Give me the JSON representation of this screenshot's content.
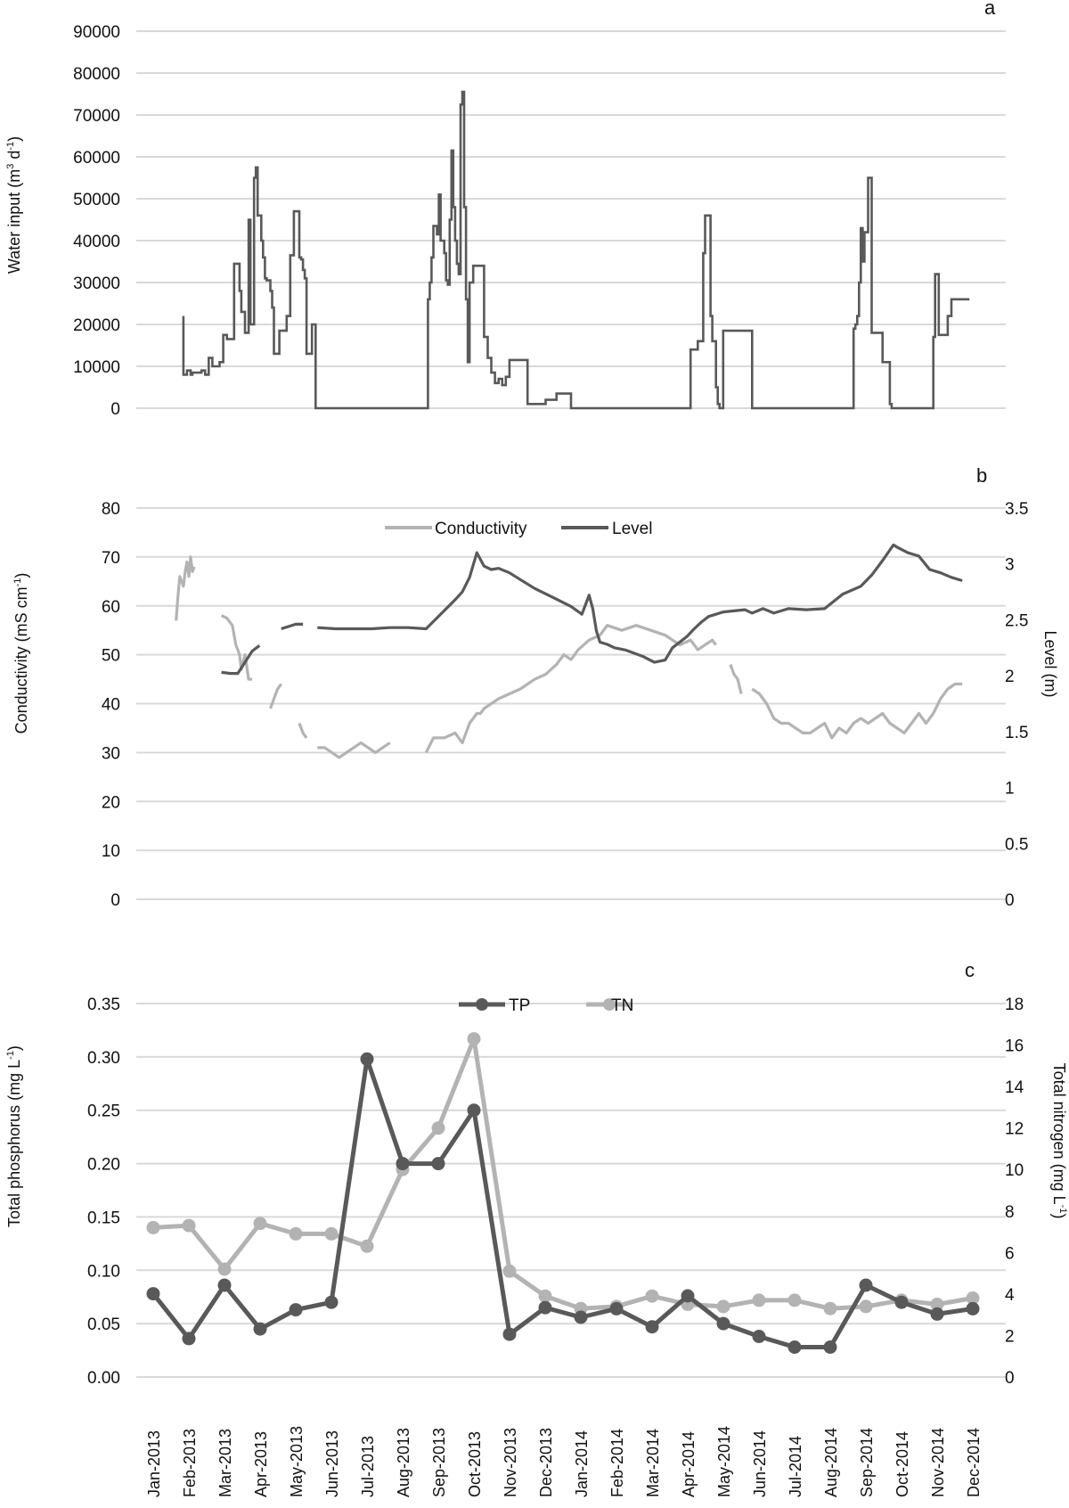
{
  "colors": {
    "dark": "#595959",
    "light": "#b3b3b3",
    "grid": "#d9d9d9",
    "text": "#111111"
  },
  "chart_data": [
    {
      "panel_label": "a",
      "type": "line",
      "ylabel": "Water input (m³ d⁻¹)",
      "ylabel_main": "Water input (m",
      "ylabel_sup1": "3",
      "ylabel_mid": " d",
      "ylabel_sup2": "-1",
      "ylabel_end": ")",
      "ylim": [
        0,
        90000
      ],
      "y_ticks": [
        "90000",
        "80000",
        "70000",
        "60000",
        "50000",
        "40000",
        "30000",
        "20000",
        "10000",
        "0"
      ],
      "grid": true,
      "xlim": [
        0,
        24
      ],
      "series": [
        {
          "color": "dark",
          "style": "step",
          "x": [
            1.3,
            1.3,
            1.4,
            1.5,
            1.55,
            1.7,
            1.8,
            1.9,
            2.0,
            2.1,
            2.2,
            2.3,
            2.4,
            2.5,
            2.6,
            2.7,
            2.85,
            2.9,
            3.0,
            3.1,
            3.15,
            3.25,
            3.3,
            3.35,
            3.4,
            3.45,
            3.5,
            3.55,
            3.6,
            3.65,
            3.7,
            3.75,
            3.8,
            3.85,
            3.9,
            3.95,
            4.05,
            4.15,
            4.25,
            4.35,
            4.5,
            4.55,
            4.6,
            4.65,
            4.7,
            4.75,
            4.8,
            4.85,
            4.95,
            5.0,
            5.05,
            5.8,
            7.0,
            8.0,
            8.05,
            8.1,
            8.15,
            8.2,
            8.3,
            8.35,
            8.4,
            8.5,
            8.55,
            8.6,
            8.65,
            8.7,
            8.75,
            8.8,
            8.85,
            8.9,
            8.95,
            9.0,
            9.05,
            9.1,
            9.15,
            9.2,
            9.3,
            9.35,
            9.4,
            9.45,
            9.5,
            9.55,
            9.6,
            9.7,
            9.8,
            9.9,
            10.0,
            10.1,
            10.2,
            10.3,
            10.4,
            10.5,
            10.6,
            10.8,
            11.0,
            11.3,
            11.6,
            11.8,
            12.0,
            12.4,
            12.8,
            13.0,
            14.0,
            15.0,
            15.3,
            15.5,
            15.65,
            15.7,
            15.75,
            15.85,
            15.9,
            16.0,
            16.05,
            16.1,
            16.2,
            17.0,
            18.0,
            19.0,
            19.8,
            19.85,
            19.9,
            19.95,
            20.0,
            20.05,
            20.1,
            20.2,
            20.3,
            20.4,
            20.5,
            20.6,
            20.8,
            20.85,
            20.9,
            21.0,
            21.5,
            22.0,
            22.05,
            22.1,
            22.15,
            22.2,
            22.4,
            22.5,
            22.55,
            22.6,
            23.0
          ],
          "y": [
            22000,
            8000,
            9000,
            8000,
            8500,
            8500,
            9000,
            8000,
            12000,
            10000,
            10000,
            11000,
            17500,
            16500,
            16500,
            34500,
            28000,
            23000,
            18000,
            45000,
            20000,
            55000,
            57500,
            46000,
            46000,
            40000,
            36000,
            31000,
            30500,
            30500,
            28000,
            24000,
            13000,
            13000,
            13000,
            18500,
            18500,
            22000,
            36500,
            47000,
            36000,
            35500,
            33000,
            31000,
            13000,
            13000,
            13000,
            20000,
            0,
            0,
            0,
            0,
            0,
            0,
            26000,
            30000,
            36000,
            43500,
            41500,
            51000,
            40000,
            37000,
            30500,
            29500,
            45000,
            61500,
            48000,
            40000,
            34500,
            32000,
            72500,
            75500,
            48000,
            26000,
            11000,
            30000,
            34000,
            34000,
            34000,
            34000,
            34000,
            34000,
            17000,
            12000,
            8500,
            6000,
            7000,
            5500,
            7500,
            11500,
            11500,
            11500,
            11500,
            1000,
            1000,
            2000,
            3500,
            3500,
            0,
            0,
            0,
            0,
            0,
            0,
            14000,
            16000,
            37000,
            46000,
            46000,
            22000,
            16000,
            5000,
            1000,
            0,
            18500,
            0,
            0,
            0,
            19000,
            20000,
            22000,
            30000,
            43000,
            35000,
            42000,
            55000,
            18000,
            18000,
            18000,
            11000,
            1000,
            0,
            0,
            0,
            0,
            17000,
            32000,
            32000,
            17500,
            17500,
            22000,
            26000,
            26000,
            26000,
            26000
          ]
        }
      ]
    },
    {
      "panel_label": "b",
      "type": "line",
      "ylabel": "Conductivity (mS cm⁻¹)",
      "ylabel_main": "Conductivity (mS cm",
      "ylabel_sup": "-1",
      "ylabel_end": ")",
      "ylim": [
        0,
        80
      ],
      "y_ticks": [
        "80",
        "70",
        "60",
        "50",
        "40",
        "30",
        "20",
        "10",
        "0"
      ],
      "y2label": "Level (m)",
      "y2lim": [
        0,
        3.5
      ],
      "y2_ticks": [
        "3.5",
        "3",
        "2.5",
        "2",
        "1.5",
        "1",
        "0.5",
        "0"
      ],
      "grid": true,
      "xlim": [
        0,
        24
      ],
      "legend": [
        "Conductivity",
        "Level"
      ],
      "legend_position": "top-center",
      "series": [
        {
          "name": "Conductivity",
          "axis": "left",
          "color": "light",
          "segments": [
            {
              "x": [
                1.1,
                1.15,
                1.2,
                1.3,
                1.35,
                1.4,
                1.45,
                1.5,
                1.55,
                1.6
              ],
              "y": [
                57,
                62,
                66,
                64,
                67,
                69,
                66,
                70,
                67,
                68
              ]
            },
            {
              "x": [
                2.35,
                2.5,
                2.65,
                2.75,
                2.85,
                2.9,
                3.0,
                3.1,
                3.2
              ],
              "y": [
                58,
                57.5,
                56,
                52,
                50,
                47,
                50,
                45,
                45
              ]
            },
            {
              "x": [
                3.7,
                3.8,
                3.9,
                4.0
              ],
              "y": [
                39,
                41,
                43,
                44
              ]
            },
            {
              "x": [
                4.5,
                4.6,
                4.7
              ],
              "y": [
                36,
                34,
                33
              ]
            },
            {
              "x": [
                5.0,
                5.2,
                5.4,
                5.6,
                5.8,
                6.0,
                6.2,
                6.4,
                6.6,
                6.8,
                7.0
              ],
              "y": [
                31,
                31,
                30,
                29,
                30,
                31,
                32,
                31,
                30,
                31,
                32
              ]
            },
            {
              "x": [
                8.0,
                8.2,
                8.5,
                8.8,
                9.0,
                9.2,
                9.4,
                9.5,
                9.6,
                9.8,
                10.0,
                10.3,
                10.6,
                11.0,
                11.3,
                11.6,
                11.8,
                12.0,
                12.2,
                12.5,
                12.8,
                13.0,
                13.4,
                13.8,
                14.2,
                14.6,
                15.0,
                15.3,
                15.5,
                15.7,
                15.9,
                16.0
              ],
              "y": [
                30,
                33,
                33,
                34,
                32,
                36,
                38,
                38,
                39,
                40,
                41,
                42,
                43,
                45,
                46,
                48,
                50,
                49,
                51,
                53,
                54,
                56,
                55,
                56,
                55,
                54,
                52,
                53,
                51,
                52,
                53,
                52
              ]
            },
            {
              "x": [
                16.4,
                16.5,
                16.6,
                16.7
              ],
              "y": [
                48,
                46,
                45,
                42
              ]
            },
            {
              "x": [
                17.0,
                17.2,
                17.4,
                17.6,
                17.8,
                18.0,
                18.2,
                18.4,
                18.6,
                18.8,
                19.0,
                19.2,
                19.4,
                19.6,
                19.8,
                20.0,
                20.2,
                20.4,
                20.6,
                20.8,
                21.0,
                21.2,
                21.4,
                21.6,
                21.8,
                22.0,
                22.2,
                22.4,
                22.6,
                22.8
              ],
              "y": [
                43,
                42,
                40,
                37,
                36,
                36,
                35,
                34,
                34,
                35,
                36,
                33,
                35,
                34,
                36,
                37,
                36,
                37,
                38,
                36,
                35,
                34,
                36,
                38,
                36,
                38,
                41,
                43,
                44,
                44
              ]
            }
          ]
        },
        {
          "name": "Level",
          "axis": "right",
          "color": "dark",
          "segments": [
            {
              "x": [
                2.35,
                2.6,
                2.8,
                3.0,
                3.2,
                3.4
              ],
              "y": [
                2.03,
                2.02,
                2.02,
                2.12,
                2.22,
                2.27
              ]
            },
            {
              "x": [
                4.0,
                4.2,
                4.4,
                4.6
              ],
              "y": [
                2.42,
                2.44,
                2.46,
                2.46
              ]
            },
            {
              "x": [
                5.0,
                5.5,
                6.0,
                6.5,
                7.0,
                7.5,
                8.0,
                8.4,
                8.8,
                9.0,
                9.2,
                9.4,
                9.6,
                9.8,
                10.0,
                10.3,
                10.6,
                11.0,
                11.5,
                12.0,
                12.3,
                12.5,
                12.6,
                12.7,
                12.8,
                13.0,
                13.2,
                13.5,
                14.0,
                14.3,
                14.6,
                14.8,
                15.0,
                15.2,
                15.4,
                15.6,
                15.8,
                16.0,
                16.2,
                16.5,
                16.8,
                17.0,
                17.3,
                17.6,
                18.0,
                18.5,
                19.0,
                19.5,
                20.0,
                20.3,
                20.6,
                20.9,
                21.0,
                21.3,
                21.6,
                21.9,
                22.2,
                22.5,
                22.8
              ],
              "y": [
                2.43,
                2.42,
                2.42,
                2.42,
                2.43,
                2.43,
                2.42,
                2.55,
                2.68,
                2.75,
                2.88,
                3.1,
                2.98,
                2.95,
                2.96,
                2.92,
                2.86,
                2.78,
                2.7,
                2.62,
                2.55,
                2.72,
                2.6,
                2.4,
                2.3,
                2.28,
                2.25,
                2.23,
                2.17,
                2.12,
                2.14,
                2.25,
                2.3,
                2.35,
                2.42,
                2.48,
                2.53,
                2.55,
                2.57,
                2.58,
                2.59,
                2.56,
                2.6,
                2.56,
                2.6,
                2.59,
                2.6,
                2.73,
                2.8,
                2.9,
                3.03,
                3.17,
                3.15,
                3.1,
                3.07,
                2.95,
                2.92,
                2.88,
                2.85
              ]
            }
          ]
        }
      ]
    },
    {
      "panel_label": "c",
      "type": "line",
      "ylabel": "Total phosphorus (mg L⁻¹)",
      "ylabel_main": "Total phosphorus (mg L",
      "ylabel_sup": "-1",
      "ylabel_end": ")",
      "ylim": [
        0,
        0.35
      ],
      "y_ticks": [
        "0.35",
        "0.30",
        "0.25",
        "0.20",
        "0.15",
        "0.10",
        "0.05",
        "0.00"
      ],
      "y2label": "Total nitrogen (mg L⁻¹)",
      "y2label_main": "Total nitrogen (mg L",
      "y2label_sup": "-1",
      "y2label_end": ")",
      "y2lim": [
        0,
        18
      ],
      "y2_ticks": [
        "18",
        "16",
        "14",
        "12",
        "10",
        "8",
        "6",
        "4",
        "2",
        "0"
      ],
      "grid": true,
      "legend": [
        "TP",
        "TN"
      ],
      "legend_position": "top-center",
      "categories": [
        "Jan-2013",
        "Feb-2013",
        "Mar-2013",
        "Apr-2013",
        "May-2013",
        "Jun-2013",
        "Jul-2013",
        "Aug-2013",
        "Sep-2013",
        "Oct-2013",
        "Nov-2013",
        "Dec-2013",
        "Jan-2014",
        "Feb-2014",
        "Mar-2014",
        "Apr-2014",
        "May-2014",
        "Jun-2014",
        "Jul-2014",
        "Aug-2014",
        "Sep-2014",
        "Oct-2014",
        "Nov-2014",
        "Dec-2014"
      ],
      "series": [
        {
          "name": "TP",
          "axis": "left",
          "color": "dark",
          "values": [
            0.078,
            0.036,
            0.086,
            0.045,
            0.063,
            0.07,
            0.298,
            0.2,
            0.2,
            0.25,
            0.04,
            0.065,
            0.056,
            0.064,
            0.047,
            0.076,
            0.05,
            0.038,
            0.028,
            0.028,
            0.086,
            0.07,
            0.059,
            0.064
          ]
        },
        {
          "name": "TN",
          "axis": "right",
          "color": "light",
          "values": [
            7.2,
            7.3,
            5.2,
            7.4,
            6.9,
            6.9,
            6.3,
            10.0,
            12.0,
            16.3,
            5.1,
            3.9,
            3.3,
            3.4,
            3.9,
            3.5,
            3.4,
            3.7,
            3.7,
            3.3,
            3.4,
            3.7,
            3.5,
            3.8
          ]
        }
      ]
    }
  ]
}
